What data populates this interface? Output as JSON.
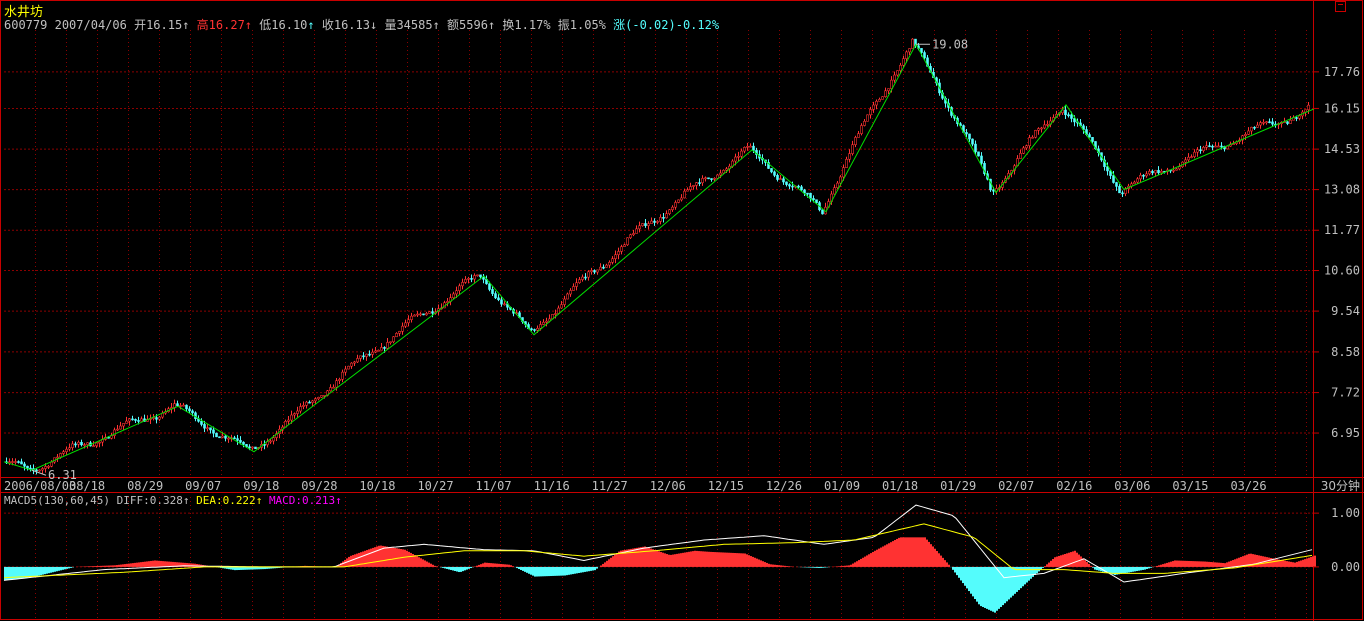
{
  "header": {
    "title": "水井坊",
    "code": "600779",
    "date": "2007/04/06",
    "open_label": "开16.15",
    "high_label": "高16.27",
    "low_label": "低16.10",
    "close_label": "收16.13",
    "volume_label": "量34585",
    "amount_label": "额5596",
    "turnover_label": "换1.17%",
    "amplitude_label": "振1.05%",
    "change_label": "涨(-0.02)-0.12%"
  },
  "macd_legend": {
    "name": "MACD5(130,60,45)",
    "diff": "DIFF:0.328",
    "dea": "DEA:0.222",
    "macd": "MACD:0.213"
  },
  "colors": {
    "up": "#ff3232",
    "down": "#54fcfc",
    "zigzag": "#00e000",
    "diff_line": "#ffffff",
    "dea_line": "#ffff00",
    "grid": "#8b0000",
    "axis": "#c80000"
  },
  "chart_data": [
    {
      "type": "line",
      "title": "",
      "price_ticks": [
        "17.76",
        "16.15",
        "14.53",
        "13.08",
        "11.77",
        "10.60",
        "9.54",
        "8.58",
        "7.72",
        "6.95"
      ],
      "date_ticks": [
        "2006/08/03",
        "08/18",
        "08/29",
        "09/07",
        "09/18",
        "09/28",
        "10/18",
        "10/27",
        "11/07",
        "11/16",
        "11/27",
        "12/06",
        "12/15",
        "12/26",
        "01/09",
        "01/18",
        "01/29",
        "02/07",
        "02/16",
        "03/06",
        "03/15",
        "03/26"
      ],
      "period_label": "30分钟",
      "ylim": [
        6.2,
        19.8
      ],
      "zigzag_series": {
        "name": "",
        "x_index": [
          0,
          28,
          174,
          250,
          290,
          480,
          530,
          748,
          822,
          912,
          992,
          1062,
          1120,
          1310
        ],
        "values": [
          6.45,
          6.31,
          7.45,
          6.62,
          7.18,
          10.45,
          8.97,
          14.5,
          12.35,
          19.08,
          12.98,
          16.3,
          13.08,
          16.13
        ]
      },
      "annotations": [
        {
          "text": "19.08",
          "value": 19.08
        },
        {
          "text": "6.31",
          "value": 6.31
        }
      ]
    },
    {
      "type": "bar",
      "title": "",
      "ticks": [
        "1.00",
        "0.00"
      ],
      "ylim": [
        -0.95,
        1.3
      ],
      "macd_anchors": {
        "x_index": [
          0,
          30,
          70,
          110,
          150,
          190,
          230,
          260,
          300,
          330,
          345,
          375,
          400,
          430,
          455,
          480,
          505,
          530,
          560,
          590,
          615,
          640,
          665,
          690,
          705,
          740,
          765,
          790,
          815,
          845,
          870,
          895,
          920,
          945,
          975,
          990,
          1010,
          1030,
          1050,
          1070,
          1090,
          1110,
          1140,
          1170,
          1200,
          1220,
          1245,
          1270,
          1290,
          1310
        ],
        "values": [
          -0.25,
          -0.18,
          0.0,
          0.03,
          0.12,
          0.06,
          -0.06,
          -0.04,
          0.02,
          -0.01,
          0.2,
          0.4,
          0.32,
          0.02,
          -0.1,
          0.08,
          0.04,
          -0.18,
          -0.16,
          -0.06,
          0.3,
          0.38,
          0.22,
          0.3,
          0.28,
          0.25,
          0.05,
          0.0,
          -0.02,
          0.03,
          0.3,
          0.55,
          0.55,
          0.02,
          -0.72,
          -0.85,
          -0.5,
          -0.15,
          0.18,
          0.3,
          -0.05,
          -0.15,
          -0.05,
          0.12,
          0.1,
          0.07,
          0.25,
          0.15,
          0.08,
          0.21
        ]
      },
      "diff_anchors": {
        "x_index": [
          0,
          100,
          180,
          260,
          330,
          380,
          420,
          480,
          530,
          580,
          640,
          700,
          760,
          820,
          870,
          912,
          950,
          1000,
          1040,
          1080,
          1120,
          1180,
          1250,
          1310
        ],
        "values": [
          -0.25,
          -0.05,
          0.02,
          0.0,
          0.0,
          0.35,
          0.42,
          0.32,
          0.3,
          0.12,
          0.35,
          0.5,
          0.58,
          0.42,
          0.55,
          1.15,
          0.95,
          -0.2,
          -0.12,
          0.15,
          -0.28,
          -0.12,
          0.05,
          0.33
        ]
      },
      "dea_anchors": {
        "x_index": [
          0,
          120,
          200,
          280,
          340,
          400,
          460,
          520,
          580,
          650,
          720,
          790,
          850,
          920,
          970,
          1010,
          1060,
          1110,
          1160,
          1230,
          1310
        ],
        "values": [
          -0.2,
          -0.1,
          0.0,
          0.0,
          0.0,
          0.18,
          0.3,
          0.3,
          0.2,
          0.3,
          0.42,
          0.45,
          0.5,
          0.8,
          0.55,
          -0.05,
          -0.05,
          -0.12,
          -0.12,
          -0.02,
          0.22
        ]
      }
    }
  ]
}
